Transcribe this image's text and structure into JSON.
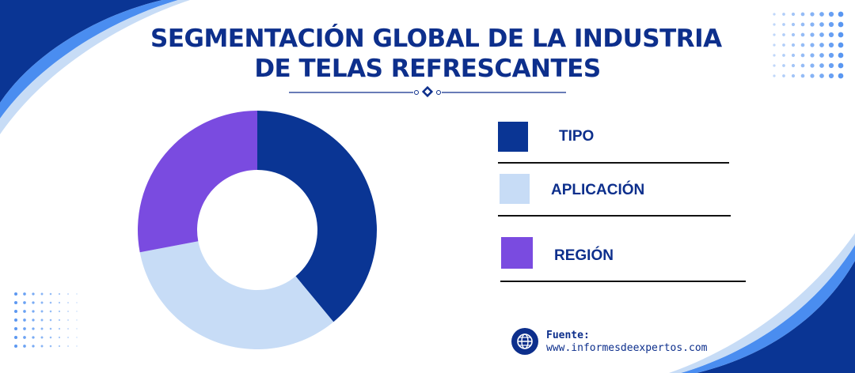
{
  "title": {
    "line1": "SEGMENTACIÓN GLOBAL DE LA INDUSTRIA",
    "line2": "DE TELAS REFRESCANTES"
  },
  "colors": {
    "navy": "#0a3594",
    "light_blue": "#c7dcf6",
    "purple": "#7a4be0",
    "title": "#0d2f8c",
    "accent_blue": "#4a8df0"
  },
  "chart_data": {
    "type": "pie",
    "variant": "donut",
    "series": [
      {
        "name": "TIPO",
        "value": 39,
        "color": "#0a3594"
      },
      {
        "name": "APLICACIÓN",
        "value": 33,
        "color": "#c7dcf6"
      },
      {
        "name": "REGIÓN",
        "value": 28,
        "color": "#7a4be0"
      }
    ],
    "title": "",
    "legend": "right"
  },
  "legend": [
    {
      "label": "TIPO",
      "color": "#0a3594"
    },
    {
      "label": "APLICACIÓN",
      "color": "#c7dcf6"
    },
    {
      "label": "REGIÓN",
      "color": "#7a4be0"
    }
  ],
  "source": {
    "label": "Fuente:",
    "url": "www.informesdeexpertos.com",
    "icon": "globe-icon"
  }
}
